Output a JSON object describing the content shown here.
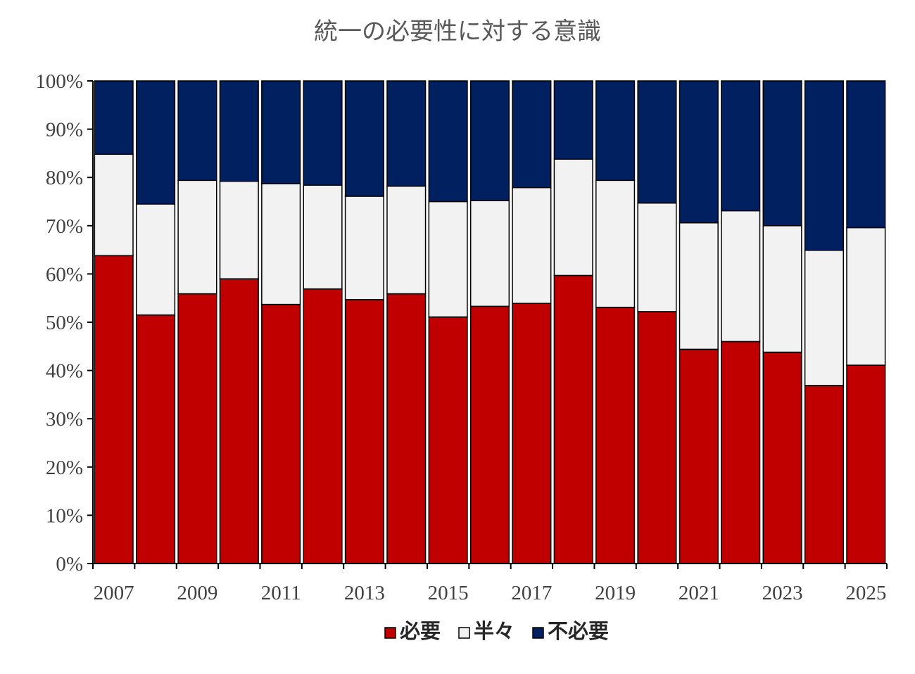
{
  "chart_data": {
    "type": "bar",
    "stacked": true,
    "title": "統一の必要性に対する意識",
    "xlabel": "",
    "ylabel": "",
    "ylim": [
      0,
      100
    ],
    "y_ticks": [
      "0%",
      "10%",
      "20%",
      "30%",
      "40%",
      "50%",
      "60%",
      "70%",
      "80%",
      "90%",
      "100%"
    ],
    "categories": [
      "2007",
      "2008",
      "2009",
      "2010",
      "2011",
      "2012",
      "2013",
      "2014",
      "2015",
      "2016",
      "2017",
      "2018",
      "2019",
      "2020",
      "2021",
      "2022",
      "2023",
      "2024",
      "2025"
    ],
    "x_tick_labels": [
      "2007",
      "2009",
      "2011",
      "2013",
      "2015",
      "2017",
      "2019",
      "2021",
      "2023",
      "2025"
    ],
    "series": [
      {
        "name": "必要",
        "color": "#c00000",
        "values": [
          63.8,
          51.5,
          55.9,
          59.0,
          53.7,
          56.9,
          54.7,
          55.9,
          51.1,
          53.3,
          53.9,
          59.7,
          53.1,
          52.2,
          44.4,
          46.0,
          43.8,
          36.9,
          41.1
        ]
      },
      {
        "name": "半々",
        "color": "#f2f2f2",
        "values": [
          21.0,
          23.0,
          23.5,
          20.2,
          25.0,
          21.5,
          21.4,
          22.3,
          23.9,
          21.9,
          24.0,
          24.1,
          26.3,
          22.5,
          26.2,
          27.1,
          26.2,
          28.0,
          28.5
        ]
      },
      {
        "name": "不必要",
        "color": "#002060",
        "values": [
          15.2,
          25.5,
          20.6,
          20.8,
          21.3,
          21.6,
          23.9,
          21.8,
          25.0,
          24.8,
          22.1,
          16.2,
          20.6,
          25.3,
          29.4,
          26.9,
          30.0,
          35.1,
          30.4
        ]
      }
    ],
    "legend": {
      "position": "bottom",
      "labels": [
        "必要",
        "半々",
        "不必要"
      ]
    },
    "grid": false
  }
}
